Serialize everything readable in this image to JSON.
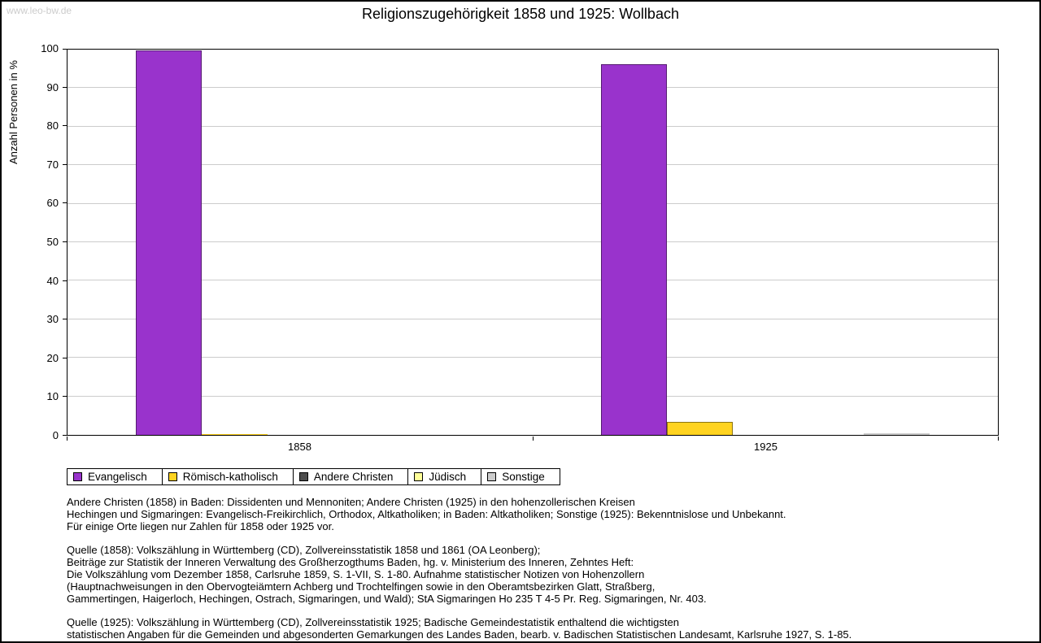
{
  "page": {
    "watermark": "www.leo-bw.de"
  },
  "chart_data": {
    "type": "bar",
    "title": "Religionszugehörigkeit 1858 und 1925: Wollbach",
    "xlabel": "",
    "ylabel": "Anzahl Personen in %",
    "ylim": [
      0,
      100
    ],
    "ytick_step": 10,
    "grid": true,
    "legend_position": "bottom-left",
    "categories": [
      "1858",
      "1925"
    ],
    "series": [
      {
        "name": "Evangelisch",
        "color": "#9933CC",
        "values": [
          99.7,
          96.2
        ]
      },
      {
        "name": "Römisch-katholisch",
        "color": "#FFD320",
        "values": [
          0.3,
          3.4
        ]
      },
      {
        "name": "Andere Christen",
        "color": "#4D4D4D",
        "values": [
          0,
          0
        ]
      },
      {
        "name": "Jüdisch",
        "color": "#FFFF99",
        "values": [
          0,
          0
        ]
      },
      {
        "name": "Sonstige",
        "color": "#CCCCCC",
        "values": [
          0,
          0.4
        ]
      }
    ]
  },
  "footnotes": [
    {
      "lines": [
        "Andere Christen (1858) in Baden: Dissidenten und Mennoniten; Andere Christen (1925) in den hohenzollerischen Kreisen",
        "Hechingen und Sigmaringen: Evangelisch-Freikirchlich, Orthodox, Altkatholiken; in Baden: Altkatholiken; Sonstige (1925): Bekenntnislose und Unbekannt.",
        "Für einige Orte liegen nur Zahlen für 1858 oder 1925 vor."
      ]
    },
    {
      "lines": [
        "Quelle (1858): Volkszählung in Württemberg (CD), Zollvereinsstatistik 1858 und 1861 (OA Leonberg);",
        "Beiträge zur Statistik der Inneren Verwaltung des Großherzogthums Baden, hg. v. Ministerium des Inneren, Zehntes Heft:",
        "Die Volkszählung vom Dezember 1858, Carlsruhe 1859, S. 1-VII, S. 1-80. Aufnahme statistischer Notizen von Hohenzollern",
        "(Hauptnachweisungen in den Obervogteiämtern Achberg und Trochtelfingen sowie in den Oberamtsbezirken Glatt, Straßberg,",
        "Gammertingen, Haigerloch, Hechingen, Ostrach, Sigmaringen, und Wald); StA Sigmaringen Ho 235 T 4-5 Pr. Reg. Sigmaringen, Nr. 403."
      ]
    },
    {
      "lines": [
        "Quelle (1925): Volkszählung in Württemberg (CD), Zollvereinsstatistik 1925; Badische Gemeindestatistik enthaltend die wichtigsten",
        "statistischen Angaben für die Gemeinden und abgesonderten Gemarkungen des Landes Baden, bearb. v. Badischen Statistischen Landesamt, Karlsruhe 1927, S. 1-85."
      ]
    }
  ]
}
